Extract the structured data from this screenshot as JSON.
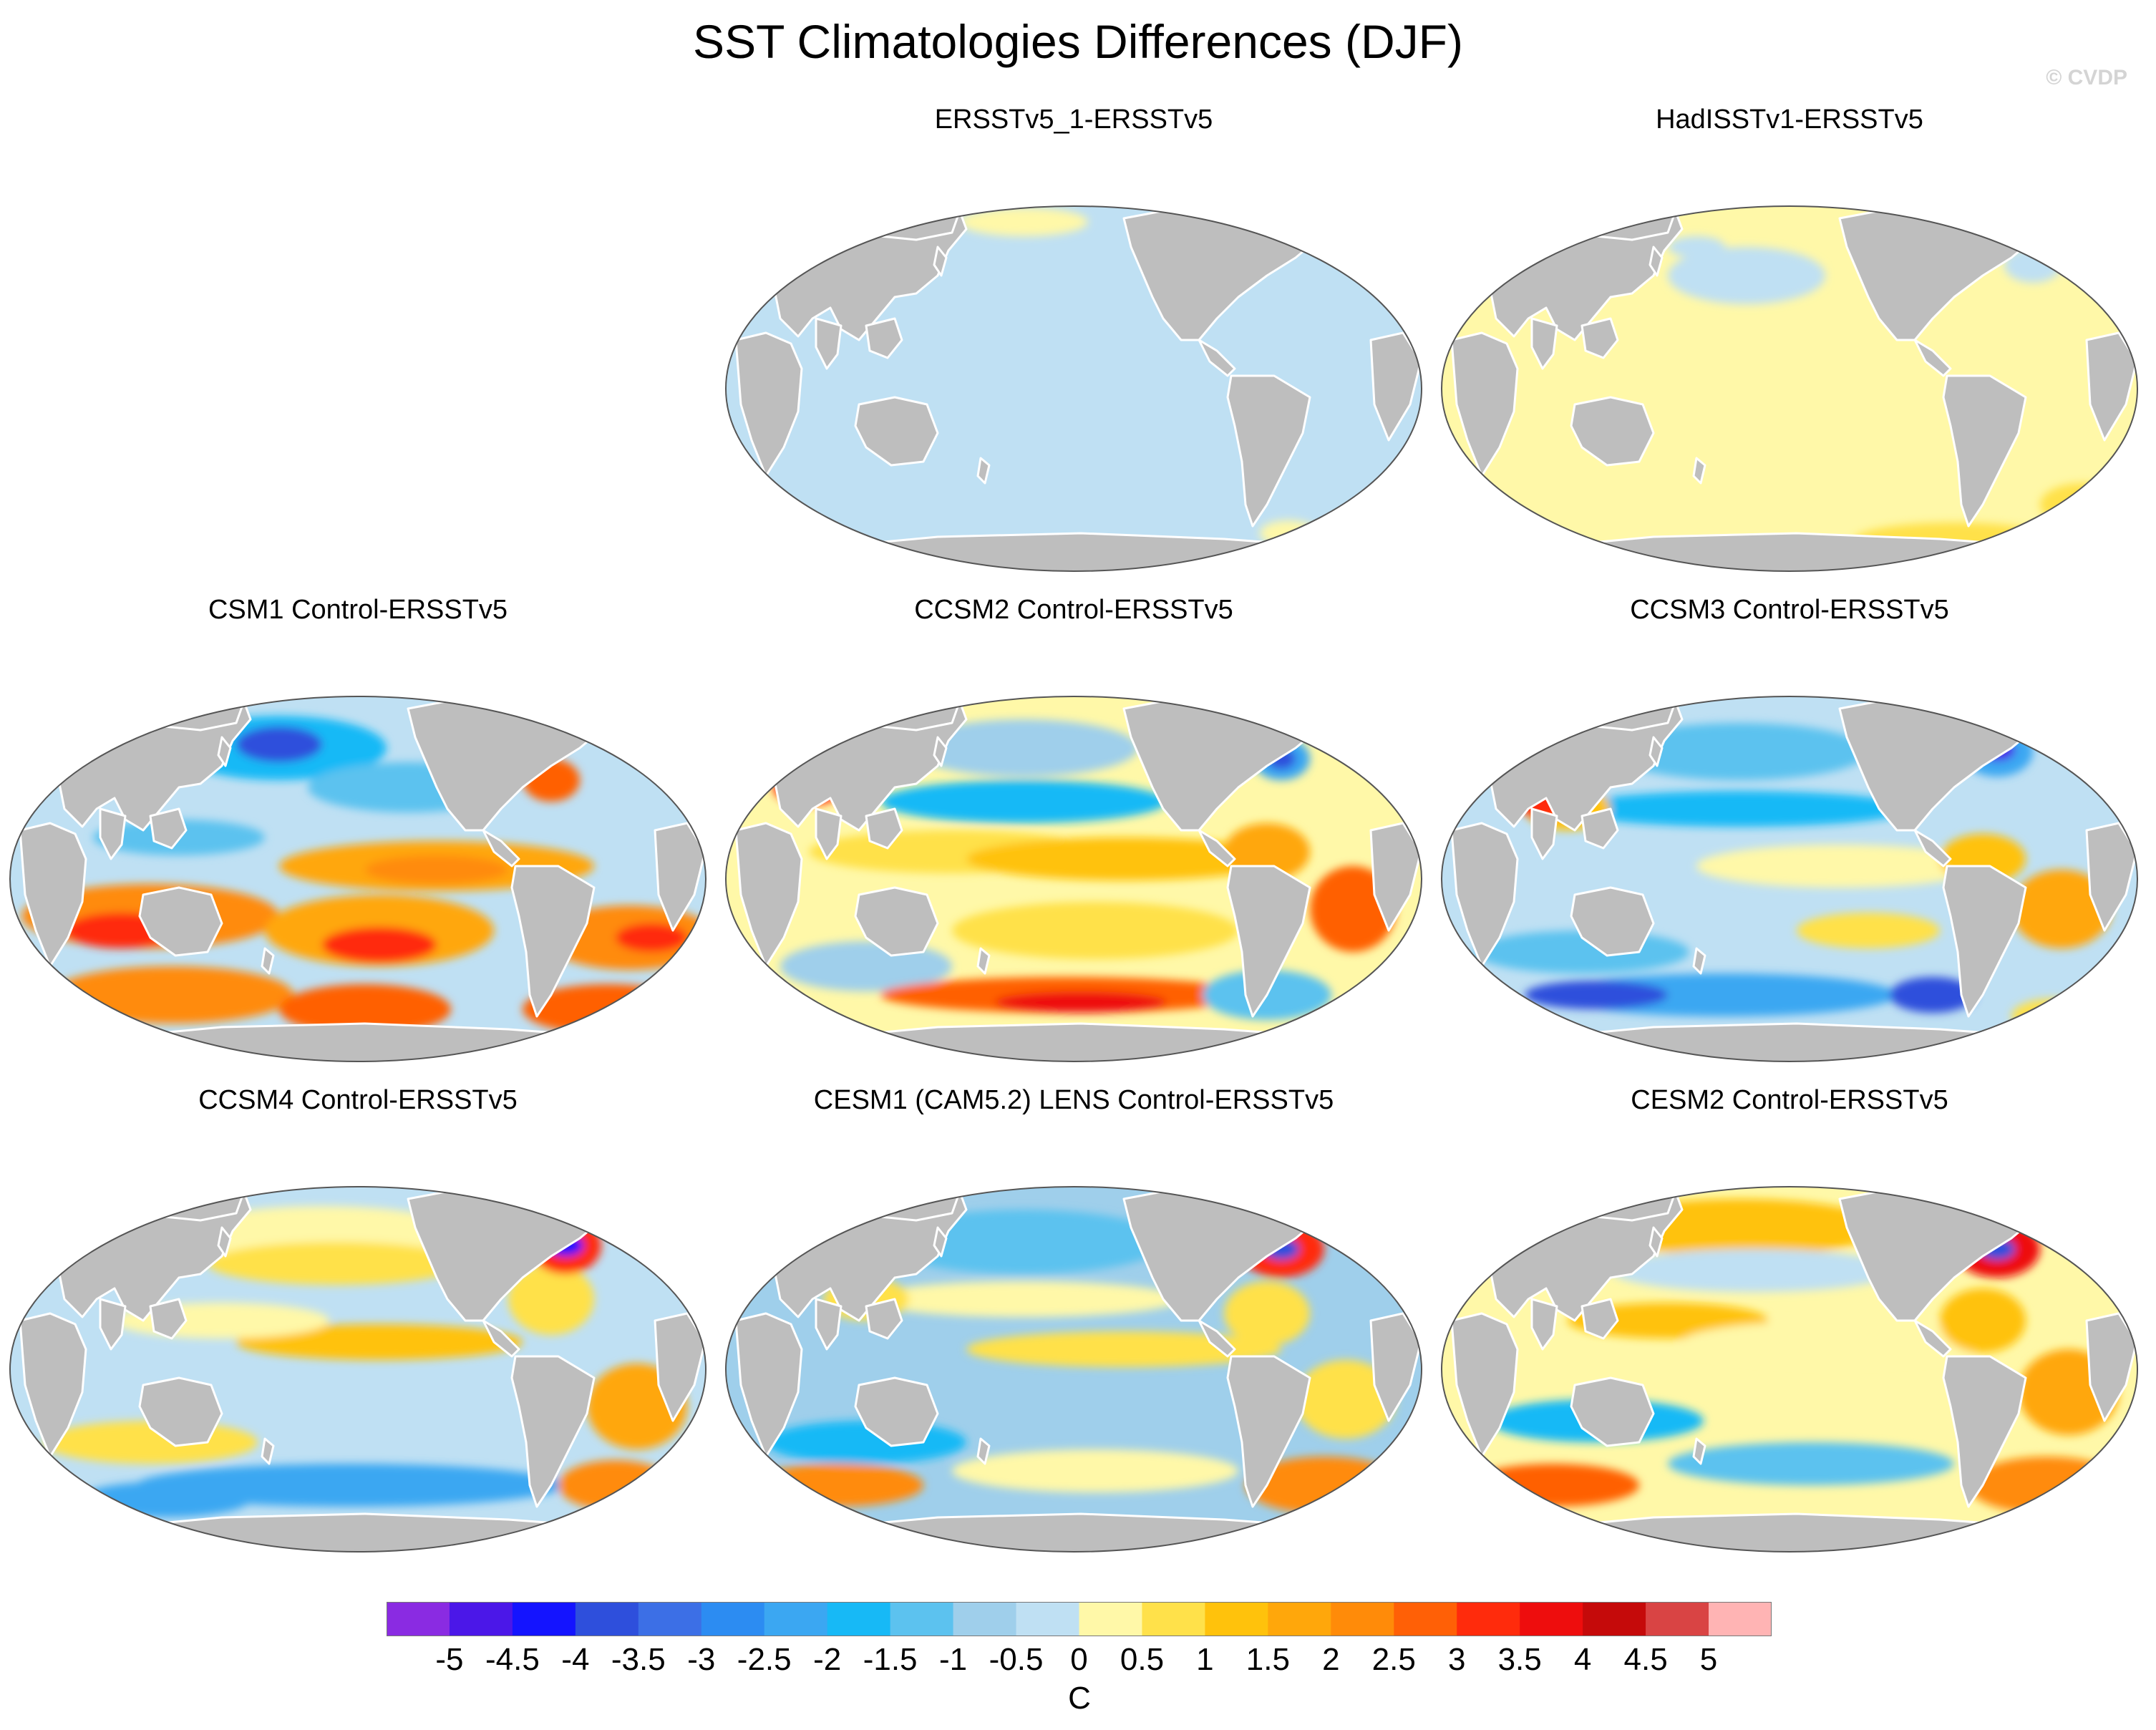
{
  "title": "SST Climatologies Differences (DJF)",
  "credit": "© CVDP",
  "panels": [
    {
      "title": "ERSSTv5_1-ERSSTv5",
      "scheme": "uniform_cool"
    },
    {
      "title": "HadISSTv1-ERSSTv5",
      "scheme": "uniform_warm"
    },
    {
      "title": "CSM1 Control-ERSSTv5",
      "scheme": "csm1"
    },
    {
      "title": "CCSM2 Control-ERSSTv5",
      "scheme": "ccsm2"
    },
    {
      "title": "CCSM3 Control-ERSSTv5",
      "scheme": "ccsm3"
    },
    {
      "title": "CCSM4 Control-ERSSTv5",
      "scheme": "ccsm4"
    },
    {
      "title": "CESM1 (CAM5.2) LENS Control-ERSSTv5",
      "scheme": "cesm1"
    },
    {
      "title": "CESM2 Control-ERSSTv5",
      "scheme": "cesm2"
    }
  ],
  "colorbar": {
    "units": "C",
    "ticks": [
      "-5",
      "-4.5",
      "-4",
      "-3.5",
      "-3",
      "-2.5",
      "-2",
      "-1.5",
      "-1",
      "-0.5",
      "0",
      "0.5",
      "1",
      "1.5",
      "2",
      "2.5",
      "3",
      "3.5",
      "4",
      "4.5",
      "5"
    ],
    "colors": [
      "#8a2be2",
      "#4b17e8",
      "#1414ff",
      "#2e4fdc",
      "#3c6fe6",
      "#2c8cf2",
      "#3ba7f2",
      "#17b9f6",
      "#5cc2ef",
      "#9fcfeb",
      "#bfe0f3",
      "#fff8a8",
      "#ffe14a",
      "#ffc20c",
      "#ffa70b",
      "#ff8b09",
      "#ff6006",
      "#ff2b0c",
      "#ee0d0d",
      "#c50a0a",
      "#d94444",
      "#ffb4b4"
    ]
  },
  "colors": {
    "land": "#bebebe",
    "coastline": "#ffffff",
    "map_border": "#555555"
  }
}
